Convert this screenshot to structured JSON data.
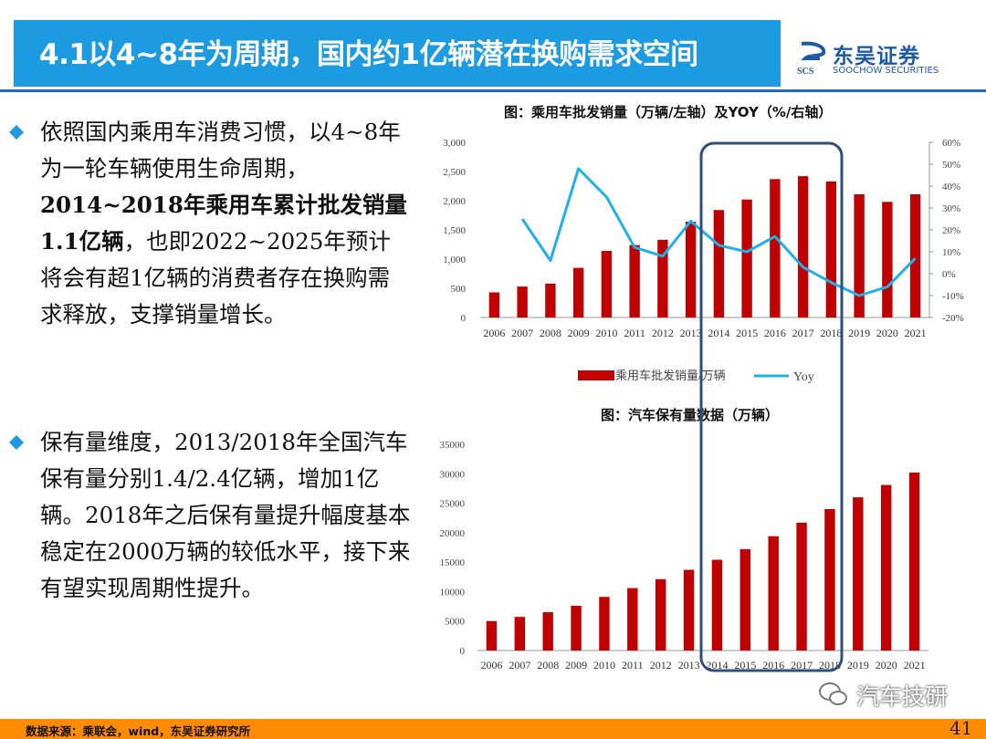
{
  "header": {
    "title": "4.1以4~8年为周期，国内约1亿辆潜在换购需求空间",
    "logo_name": "东吴证券",
    "logo_sub": "SOOCHOW SECURITIES",
    "logo_mark": "SCS"
  },
  "bullets": [
    {
      "segments": [
        {
          "text": "依照国内乘用车消费习惯，以4~8年为一轮车辆使用生命周期，",
          "bold": false
        },
        {
          "text": "2014~2018年乘用车累计批发销量1.1亿辆",
          "bold": true
        },
        {
          "text": "，也即2022~2025年预计将会有超1亿辆的消费者存在换购需求释放，支撑销量增长。",
          "bold": false
        }
      ]
    },
    {
      "segments": [
        {
          "text": "保有量维度，2013/2018年全国汽车保有量分别1.4/2.4亿辆，增加1亿辆。2018年之后保有量提升幅度基本稳定在2000万辆的较低水平，接下来有望实现周期性提升。",
          "bold": false
        }
      ]
    }
  ],
  "colors": {
    "title_bg": "#1d9be0",
    "bar": "#c00000",
    "line": "#1fb0e6",
    "highlight": "#2f4f7a",
    "footer": "#ff8c00"
  },
  "chart_data": [
    {
      "type": "bar",
      "title": "图：乘用车批发销量（万辆/左轴）及YOY（%/右轴）",
      "categories": [
        "2006",
        "2007",
        "2008",
        "2009",
        "2010",
        "2011",
        "2012",
        "2013",
        "2014",
        "2015",
        "2016",
        "2017",
        "2018",
        "2019",
        "2020",
        "2021"
      ],
      "series": [
        {
          "name": "乘用车批发销量/万辆",
          "type": "bar",
          "axis": "left",
          "values": [
            430,
            530,
            580,
            850,
            1140,
            1240,
            1330,
            1640,
            1840,
            2020,
            2370,
            2420,
            2330,
            2110,
            1980,
            2110
          ]
        },
        {
          "name": "Yoy",
          "type": "line",
          "axis": "right",
          "values": [
            null,
            25,
            6,
            48,
            35,
            12,
            8,
            24,
            13,
            10,
            17,
            3,
            -4,
            -10,
            -6,
            7
          ]
        }
      ],
      "ylim": [
        0,
        3000
      ],
      "yticks": [
        "0",
        "500",
        "1,000",
        "1,500",
        "2,000",
        "2,500",
        "3,000"
      ],
      "y2lim": [
        -20,
        60
      ],
      "y2ticks": [
        "-20%",
        "-10%",
        "0%",
        "10%",
        "20%",
        "30%",
        "40%",
        "50%",
        "60%"
      ],
      "legend": "bottom",
      "grid": false
    },
    {
      "type": "bar",
      "title": "图：汽车保有量数据（万辆）",
      "categories": [
        "2006",
        "2007",
        "2008",
        "2009",
        "2010",
        "2011",
        "2012",
        "2013",
        "2014",
        "2015",
        "2016",
        "2017",
        "2018",
        "2019",
        "2020",
        "2021"
      ],
      "series": [
        {
          "name": "",
          "values": [
            5000,
            5700,
            6500,
            7600,
            9100,
            10600,
            12100,
            13700,
            15400,
            17200,
            19400,
            21700,
            24000,
            26000,
            28100,
            30200
          ]
        }
      ],
      "ylim": [
        0,
        35000
      ],
      "yticks": [
        "0",
        "5000",
        "10000",
        "15000",
        "20000",
        "25000",
        "30000",
        "35000"
      ],
      "grid": false
    }
  ],
  "footer": {
    "source": "数据来源：乘联会，wind，东吴证券研究所",
    "page": "41",
    "watermark": "汽车技研"
  }
}
